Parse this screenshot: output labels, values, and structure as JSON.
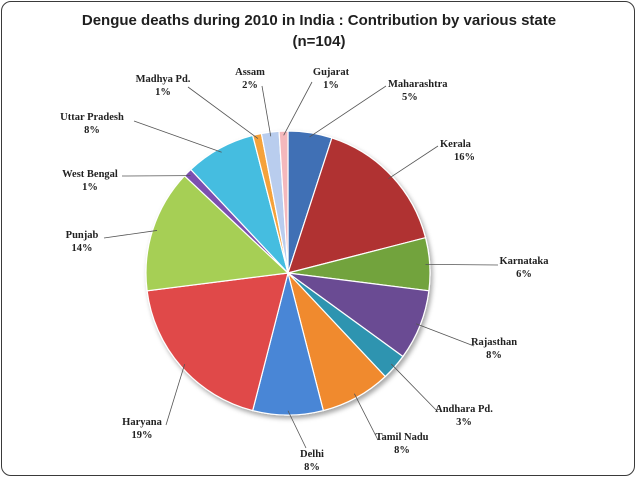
{
  "chart_data": {
    "type": "pie",
    "title": "Dengue deaths during 2010 in India : Contribution by various state",
    "subtitle": "(n=104)",
    "slices": [
      {
        "label": "Maharashtra",
        "value": 5,
        "value_label": "5%",
        "color": "#3f6fb5"
      },
      {
        "label": "Kerala",
        "value": 16,
        "value_label": "16%",
        "color": "#b03230"
      },
      {
        "label": "Karnataka",
        "value": 6,
        "value_label": "6%",
        "color": "#72a33d"
      },
      {
        "label": "Rajasthan",
        "value": 8,
        "value_label": "8%",
        "color": "#6a4c93"
      },
      {
        "label": "Andhara Pd.",
        "value": 3,
        "value_label": "3%",
        "color": "#2e94b0"
      },
      {
        "label": "Tamil Nadu",
        "value": 8,
        "value_label": "8%",
        "color": "#f08a2e"
      },
      {
        "label": "Delhi",
        "value": 8,
        "value_label": "8%",
        "color": "#4a86d6"
      },
      {
        "label": "Haryana",
        "value": 19,
        "value_label": "19%",
        "color": "#e04848"
      },
      {
        "label": "Punjab",
        "value": 14,
        "value_label": "14%",
        "color": "#a6cf55"
      },
      {
        "label": "West Bengal",
        "value": 1,
        "value_label": "1%",
        "color": "#7b4fb0"
      },
      {
        "label": "Uttar Pradesh",
        "value": 8,
        "value_label": "8%",
        "color": "#45bde0"
      },
      {
        "label": "Madhya Pd.",
        "value": 1,
        "value_label": "1%",
        "color": "#f5a23a"
      },
      {
        "label": "Assam",
        "value": 2,
        "value_label": "2%",
        "color": "#b9cdee"
      },
      {
        "label": "Gujarat",
        "value": 1,
        "value_label": "1%",
        "color": "#f4b8bc"
      }
    ]
  }
}
